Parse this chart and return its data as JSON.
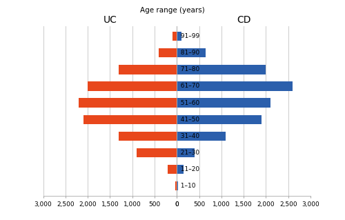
{
  "age_groups": [
    "1–10",
    "11–20",
    "21–30",
    "31–40",
    "41–50",
    "51–60",
    "61–70",
    "71–80",
    "81–90",
    "91–99"
  ],
  "UC_values": [
    30,
    200,
    900,
    1300,
    2100,
    2200,
    2000,
    1300,
    400,
    100
  ],
  "CD_values": [
    30,
    150,
    400,
    1100,
    1900,
    2100,
    2600,
    2000,
    650,
    100
  ],
  "UC_color": "#E8471C",
  "CD_color": "#2B5FAC",
  "title_UC": "UC",
  "title_CD": "CD",
  "center_label": "Age range (years)",
  "xlim": 3000,
  "xticks": [
    0,
    500,
    1000,
    1500,
    2000,
    2500,
    3000
  ],
  "bg_color": "#ffffff",
  "grid_color": "#cccccc",
  "bar_height": 0.55,
  "bar_gap": 0.3
}
